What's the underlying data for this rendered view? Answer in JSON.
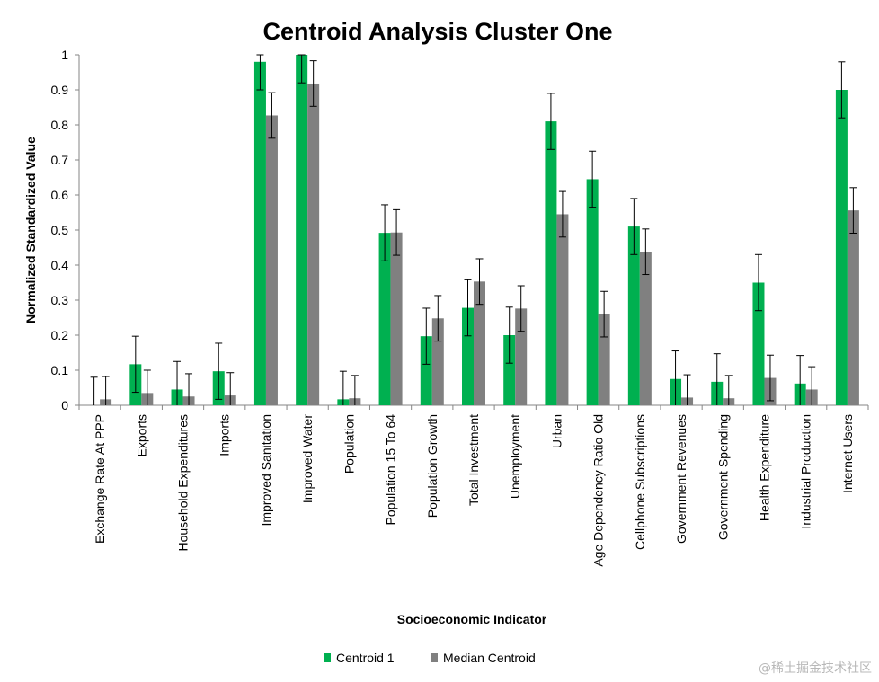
{
  "chart_data": {
    "type": "bar",
    "title": "Centroid Analysis Cluster One",
    "xlabel": "Socioeconomic Indicator",
    "ylabel": "Normalized Standardized Value",
    "ylim": [
      0,
      1
    ],
    "yticks": [
      0,
      0.1,
      0.2,
      0.3,
      0.4,
      0.5,
      0.6,
      0.7,
      0.8,
      0.9,
      1
    ],
    "yticks_labels": [
      "0",
      "0.1",
      "0.2",
      "0.3",
      "0.4",
      "0.5",
      "0.6",
      "0.7",
      "0.8",
      "0.9",
      "1"
    ],
    "grid": false,
    "legend_position": "bottom",
    "categories": [
      "Exchange Rate At PPP",
      "Exports",
      "Household Expenditures",
      "Imports",
      "Improved Sanitation",
      "Improved Water",
      "Population",
      "Population 15 To 64",
      "Population Growth",
      "Total Investment",
      "Unemployment",
      "Urban",
      "Age Dependency Ratio Old",
      "Cellphone Subscriptions",
      "Government Revenues",
      "Government Spending",
      "Health Expenditure",
      "Industrial Production",
      "Internet Users"
    ],
    "series": [
      {
        "name": "Centroid 1",
        "color": "#00b050",
        "values": [
          0.0,
          0.117,
          0.045,
          0.097,
          0.98,
          1.0,
          0.017,
          0.492,
          0.197,
          0.278,
          0.2,
          0.81,
          0.645,
          0.51,
          0.075,
          0.067,
          0.35,
          0.062,
          0.9
        ],
        "errors": [
          0.08,
          0.08,
          0.08,
          0.08,
          0.08,
          0.08,
          0.08,
          0.08,
          0.08,
          0.08,
          0.08,
          0.08,
          0.08,
          0.08,
          0.08,
          0.08,
          0.08,
          0.08,
          0.08
        ]
      },
      {
        "name": "Median Centroid",
        "color": "#808080",
        "values": [
          0.017,
          0.035,
          0.025,
          0.028,
          0.827,
          0.918,
          0.02,
          0.493,
          0.248,
          0.353,
          0.276,
          0.545,
          0.26,
          0.438,
          0.022,
          0.02,
          0.078,
          0.045,
          0.556
        ],
        "errors": [
          0.065,
          0.065,
          0.065,
          0.065,
          0.065,
          0.065,
          0.065,
          0.065,
          0.065,
          0.065,
          0.065,
          0.065,
          0.065,
          0.065,
          0.065,
          0.065,
          0.065,
          0.065,
          0.065
        ]
      }
    ]
  },
  "watermark": "@稀土掘金技术社区"
}
